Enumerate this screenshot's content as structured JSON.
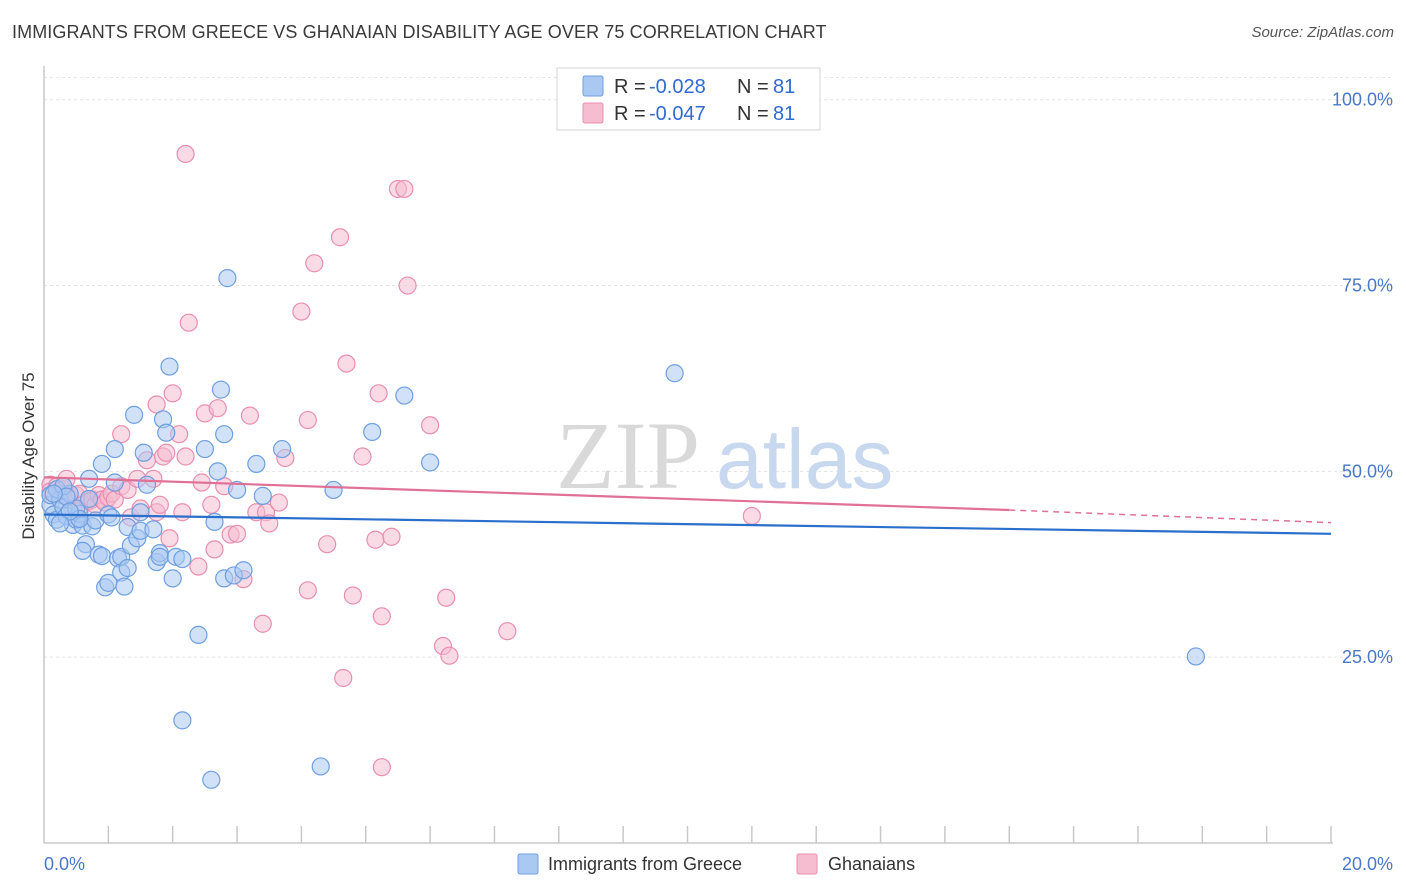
{
  "title": "IMMIGRANTS FROM GREECE VS GHANAIAN DISABILITY AGE OVER 75 CORRELATION CHART",
  "source": "Source: ZipAtlas.com",
  "watermark": {
    "part1": "ZIP",
    "part2": "atlas"
  },
  "colors": {
    "blue_fill": "#a9c8f2",
    "blue_stroke": "#6f9fe0",
    "blue_line": "#2a6fcc",
    "pink_fill": "#f6bcd0",
    "pink_stroke": "#e98fb0",
    "pink_line": "#e07096",
    "tick_label": "#4a78c8",
    "grid": "#e3e3e3"
  },
  "legend": {
    "rows": [
      {
        "r_label": "R = ",
        "r_value": "-0.028",
        "n_label": "N = ",
        "n_value": "81",
        "series": "blue"
      },
      {
        "r_label": "R = ",
        "r_value": "-0.047",
        "n_label": "N = ",
        "n_value": "81",
        "series": "pink"
      }
    ]
  },
  "bottom_legend": [
    "Immigrants from Greece",
    "Ghanaians"
  ],
  "chart_data": {
    "type": "scatter",
    "title": "IMMIGRANTS FROM GREECE VS GHANAIAN DISABILITY AGE OVER 75 CORRELATION CHART",
    "xlabel": "",
    "ylabel": "Disability Age Over 75",
    "xlim": [
      0,
      20
    ],
    "ylim": [
      0,
      104
    ],
    "x_tick_labels": [
      "0.0%",
      "20.0%"
    ],
    "y_ticks": [
      25,
      50,
      75,
      100
    ],
    "y_tick_labels": [
      "25.0%",
      "50.0%",
      "75.0%",
      "100.0%"
    ],
    "grid": true,
    "legend_placement": "top-center",
    "series": [
      {
        "name": "Immigrants from Greece",
        "color": "#a9c8f2",
        "trend": {
          "x": [
            0,
            20
          ],
          "y": [
            44.2,
            41.6
          ]
        },
        "points": [
          [
            0.1,
            45.5
          ],
          [
            0.1,
            46.8
          ],
          [
            0.15,
            44.2
          ],
          [
            0.2,
            43.5
          ],
          [
            0.25,
            46.2
          ],
          [
            0.3,
            45.2
          ],
          [
            0.35,
            44.0
          ],
          [
            0.4,
            47.0
          ],
          [
            0.45,
            42.8
          ],
          [
            0.5,
            43.5
          ],
          [
            0.55,
            44.3
          ],
          [
            0.6,
            42.7
          ],
          [
            0.65,
            40.2
          ],
          [
            0.7,
            49.0
          ],
          [
            0.75,
            42.6
          ],
          [
            0.8,
            43.4
          ],
          [
            0.6,
            39.3
          ],
          [
            0.85,
            38.8
          ],
          [
            0.9,
            51.0
          ],
          [
            0.9,
            38.6
          ],
          [
            0.95,
            34.4
          ],
          [
            1.0,
            44.2
          ],
          [
            1.0,
            35.0
          ],
          [
            1.1,
            48.5
          ],
          [
            1.1,
            53.0
          ],
          [
            1.15,
            38.3
          ],
          [
            1.2,
            36.4
          ],
          [
            1.2,
            38.5
          ],
          [
            1.25,
            34.5
          ],
          [
            1.3,
            42.5
          ],
          [
            1.35,
            40.0
          ],
          [
            1.4,
            57.6
          ],
          [
            1.45,
            41.0
          ],
          [
            1.5,
            42.0
          ],
          [
            1.5,
            44.5
          ],
          [
            1.55,
            52.5
          ],
          [
            1.6,
            48.2
          ],
          [
            1.7,
            42.2
          ],
          [
            1.75,
            37.8
          ],
          [
            1.8,
            39.0
          ],
          [
            1.8,
            38.5
          ],
          [
            1.85,
            57.0
          ],
          [
            1.9,
            55.2
          ],
          [
            1.95,
            64.1
          ],
          [
            2.0,
            35.6
          ],
          [
            2.05,
            38.5
          ],
          [
            2.15,
            38.2
          ],
          [
            2.15,
            16.5
          ],
          [
            2.4,
            28.0
          ],
          [
            2.5,
            53.0
          ],
          [
            2.6,
            8.5
          ],
          [
            2.65,
            43.2
          ],
          [
            2.7,
            50.0
          ],
          [
            2.75,
            61.0
          ],
          [
            2.8,
            55.0
          ],
          [
            2.8,
            35.6
          ],
          [
            2.85,
            76.0
          ],
          [
            2.95,
            36.0
          ],
          [
            3.0,
            47.5
          ],
          [
            3.1,
            36.7
          ],
          [
            3.3,
            51.0
          ],
          [
            3.4,
            46.7
          ],
          [
            3.7,
            53.0
          ],
          [
            4.3,
            10.3
          ],
          [
            4.5,
            47.5
          ],
          [
            5.1,
            55.3
          ],
          [
            5.6,
            60.2
          ],
          [
            6.0,
            51.2
          ],
          [
            9.8,
            63.2
          ],
          [
            17.9,
            25.1
          ],
          [
            0.2,
            47.6
          ],
          [
            0.3,
            48.0
          ],
          [
            0.5,
            45.0
          ],
          [
            0.7,
            46.3
          ],
          [
            0.35,
            46.6
          ],
          [
            0.55,
            43.6
          ],
          [
            1.05,
            43.8
          ],
          [
            1.3,
            37.0
          ],
          [
            0.15,
            47.0
          ],
          [
            0.4,
            44.6
          ],
          [
            0.25,
            43.0
          ]
        ]
      },
      {
        "name": "Ghanaians",
        "color": "#f6bcd0",
        "trend": {
          "x": [
            0,
            15
          ],
          "y": [
            49.2,
            44.8
          ]
        },
        "trend_dashed": {
          "x": [
            15,
            20
          ],
          "y": [
            44.8,
            43.1
          ]
        },
        "points": [
          [
            0.1,
            48.2
          ],
          [
            0.1,
            47.3
          ],
          [
            0.2,
            48.0
          ],
          [
            0.25,
            46.8
          ],
          [
            0.3,
            47.6
          ],
          [
            0.35,
            49.0
          ],
          [
            0.4,
            46.5
          ],
          [
            0.45,
            45.0
          ],
          [
            0.5,
            46.8
          ],
          [
            0.55,
            47.0
          ],
          [
            0.6,
            45.5
          ],
          [
            0.7,
            46.0
          ],
          [
            0.75,
            46.2
          ],
          [
            0.8,
            45.5
          ],
          [
            0.85,
            46.8
          ],
          [
            0.9,
            46.2
          ],
          [
            0.95,
            45.8
          ],
          [
            1.0,
            46.5
          ],
          [
            1.05,
            47.0
          ],
          [
            1.1,
            46.2
          ],
          [
            1.2,
            48.0
          ],
          [
            1.2,
            55.0
          ],
          [
            1.3,
            47.5
          ],
          [
            1.35,
            43.8
          ],
          [
            1.45,
            49.0
          ],
          [
            1.5,
            45.0
          ],
          [
            1.6,
            51.5
          ],
          [
            1.7,
            49.0
          ],
          [
            1.75,
            44.5
          ],
          [
            1.75,
            59.0
          ],
          [
            1.8,
            45.5
          ],
          [
            1.85,
            52.0
          ],
          [
            1.9,
            52.5
          ],
          [
            1.95,
            41.0
          ],
          [
            2.0,
            60.5
          ],
          [
            2.1,
            55.0
          ],
          [
            2.15,
            44.5
          ],
          [
            2.2,
            52.0
          ],
          [
            2.2,
            92.7
          ],
          [
            2.25,
            70.0
          ],
          [
            2.4,
            37.2
          ],
          [
            2.45,
            48.5
          ],
          [
            2.5,
            57.8
          ],
          [
            2.6,
            45.5
          ],
          [
            2.65,
            39.5
          ],
          [
            2.7,
            58.5
          ],
          [
            2.8,
            48.0
          ],
          [
            2.9,
            41.5
          ],
          [
            3.0,
            41.6
          ],
          [
            3.1,
            35.5
          ],
          [
            3.2,
            57.5
          ],
          [
            3.3,
            44.5
          ],
          [
            3.4,
            29.5
          ],
          [
            3.45,
            44.5
          ],
          [
            3.65,
            45.8
          ],
          [
            3.75,
            51.8
          ],
          [
            4.0,
            71.5
          ],
          [
            4.1,
            34.0
          ],
          [
            4.1,
            56.9
          ],
          [
            4.2,
            78.0
          ],
          [
            4.4,
            40.2
          ],
          [
            4.6,
            81.5
          ],
          [
            4.65,
            22.2
          ],
          [
            4.7,
            64.5
          ],
          [
            4.8,
            33.3
          ],
          [
            4.95,
            52.0
          ],
          [
            5.15,
            40.8
          ],
          [
            5.2,
            60.5
          ],
          [
            5.25,
            30.5
          ],
          [
            5.4,
            41.2
          ],
          [
            5.5,
            88.0
          ],
          [
            5.6,
            88.0
          ],
          [
            5.65,
            75.0
          ],
          [
            6.0,
            56.2
          ],
          [
            6.2,
            26.5
          ],
          [
            6.25,
            33.0
          ],
          [
            6.3,
            25.2
          ],
          [
            7.2,
            28.5
          ],
          [
            11.0,
            44.0
          ],
          [
            5.25,
            10.2
          ],
          [
            3.5,
            43.0
          ]
        ]
      }
    ]
  }
}
